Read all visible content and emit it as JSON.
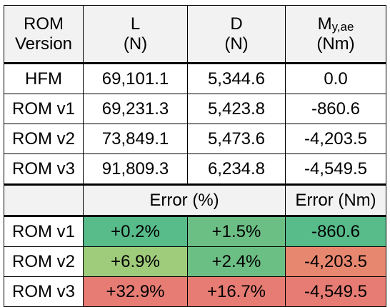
{
  "header": {
    "col0": {
      "line1": "ROM",
      "line2": "Version"
    },
    "col1": {
      "line1": "L",
      "line2": "(N)"
    },
    "col2": {
      "line1": "D",
      "line2": "(N)"
    },
    "col3": {
      "line1": "M",
      "line1_sub": "y,ae",
      "line2": "(Nm)"
    }
  },
  "data_rows": [
    {
      "label": "HFM",
      "L": "69,101.1",
      "D": "5,344.6",
      "M": "0.0"
    },
    {
      "label": "ROM v1",
      "L": "69,231.3",
      "D": "5,423.8",
      "M": "-860.6"
    },
    {
      "label": "ROM v2",
      "L": "73,849.1",
      "D": "5,473.6",
      "M": "-4,203.5"
    },
    {
      "label": "ROM v3",
      "L": "91,809.3",
      "D": "6,234.8",
      "M": "-4,549.5"
    }
  ],
  "error_header": {
    "pct": "Error (%)",
    "nm": "Error (Nm)"
  },
  "error_rows": [
    {
      "label": "ROM v1",
      "L": "+0.2%",
      "D": "+1.5%",
      "M": "-860.6"
    },
    {
      "label": "ROM v2",
      "L": "+6.9%",
      "D": "+2.4%",
      "M": "-4,203.5"
    },
    {
      "label": "ROM v3",
      "L": "+32.9%",
      "D": "+16.7%",
      "M": "-4,549.5"
    }
  ],
  "colors": {
    "good_green": "#57bb8a",
    "mid_green": "#6cbf84",
    "light_green": "#9fcc7a",
    "bad_red": "#e67c73",
    "mid_red": "#e8876f"
  },
  "error_colors": [
    [
      "#57bb8a",
      "#6cbf84",
      "#57bb8a"
    ],
    [
      "#9fcc7a",
      "#6cbf84",
      "#e8876f"
    ],
    [
      "#e67c73",
      "#e67c73",
      "#e67c73"
    ]
  ]
}
